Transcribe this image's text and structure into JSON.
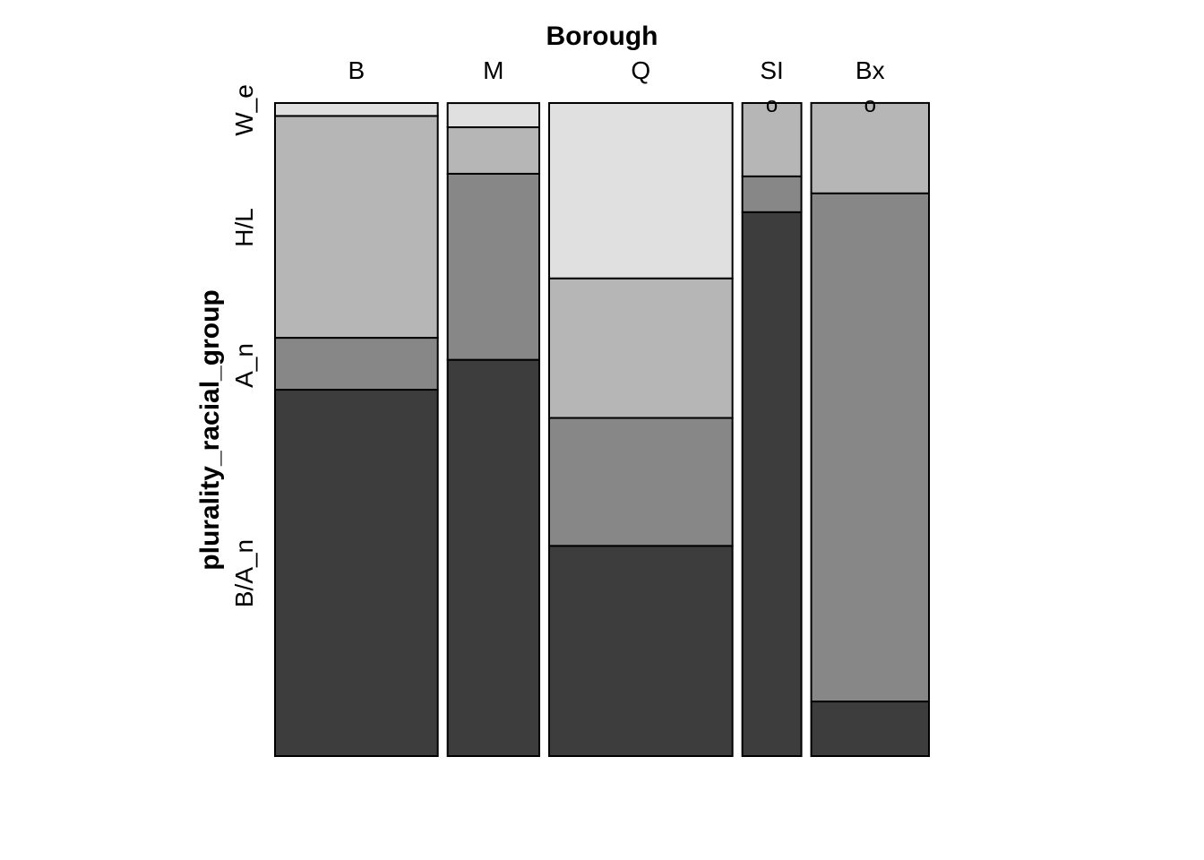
{
  "chart_data": {
    "type": "mosaic",
    "title": "Borough",
    "ylabel": "plurality_racial_group",
    "categories": [
      "B",
      "M",
      "Q",
      "SI",
      "Bx"
    ],
    "column_proportions": [
      0.2489,
      0.1402,
      0.2804,
      0.0903,
      0.1801
    ],
    "y_levels": [
      "B/A_n",
      "A_n",
      "H/L",
      "W_e"
    ],
    "colors": [
      "#3d3d3d",
      "#878787",
      "#b6b6b6",
      "#e0e0e0"
    ],
    "zero_marker_label": "o",
    "segments": [
      {
        "category": "B",
        "values": [
          0.561,
          0.0795,
          0.3397,
          0.0198
        ]
      },
      {
        "category": "M",
        "values": [
          0.6068,
          0.2849,
          0.0712,
          0.037
        ]
      },
      {
        "category": "Q",
        "values": [
          0.3219,
          0.1959,
          0.2137,
          0.2685
        ]
      },
      {
        "category": "SI",
        "values": [
          0.8329,
          0.0548,
          0.1123,
          0.0
        ]
      },
      {
        "category": "Bx",
        "values": [
          0.0836,
          0.7781,
          0.1384,
          0.0
        ]
      }
    ]
  }
}
